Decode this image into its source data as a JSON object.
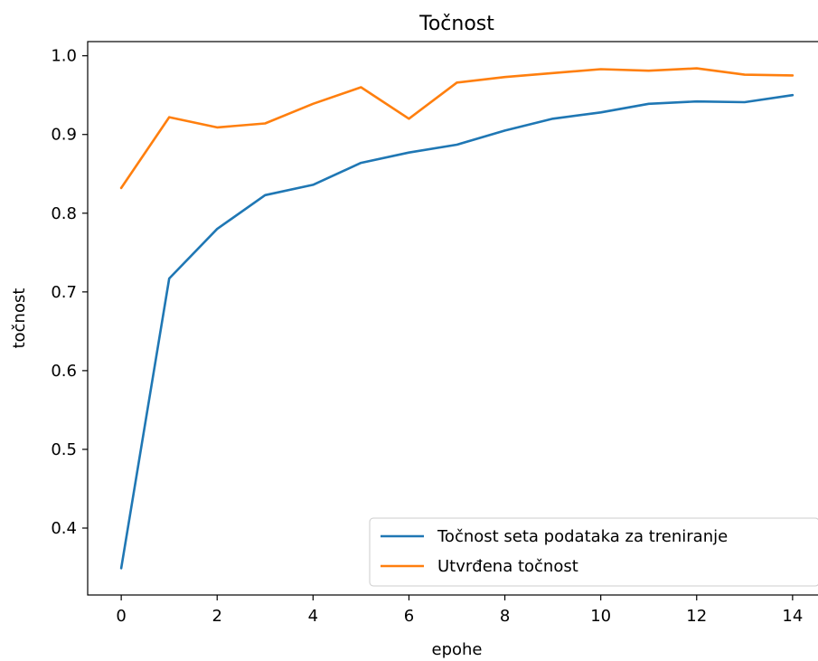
{
  "chart_data": {
    "type": "line",
    "title": "Točnost",
    "xlabel": "epohe",
    "ylabel": "točnost",
    "x": [
      0,
      1,
      2,
      3,
      4,
      5,
      6,
      7,
      8,
      9,
      10,
      11,
      12,
      13,
      14
    ],
    "xlim": [
      -0.7,
      14.7
    ],
    "ylim": [
      0.315,
      1.018
    ],
    "xticks": [
      0,
      2,
      4,
      6,
      8,
      10,
      12,
      14
    ],
    "yticks": [
      0.4,
      0.5,
      0.6,
      0.7,
      0.8,
      0.9,
      1.0
    ],
    "xtick_labels": [
      "0",
      "2",
      "4",
      "6",
      "8",
      "10",
      "12",
      "14"
    ],
    "ytick_labels": [
      "0.4",
      "0.5",
      "0.6",
      "0.7",
      "0.8",
      "0.9",
      "1.0"
    ],
    "grid": false,
    "legend_position": "lower-right",
    "series": [
      {
        "name": "Točnost seta podataka za treniranje",
        "color": "#1f77b4",
        "values": [
          0.349,
          0.717,
          0.78,
          0.823,
          0.836,
          0.864,
          0.877,
          0.887,
          0.905,
          0.92,
          0.928,
          0.939,
          0.942,
          0.941,
          0.95
        ]
      },
      {
        "name": "Utvrđena točnost",
        "color": "#ff7f0e",
        "values": [
          0.832,
          0.922,
          0.909,
          0.914,
          0.939,
          0.96,
          0.92,
          0.966,
          0.973,
          0.978,
          0.983,
          0.981,
          0.984,
          0.976,
          0.975
        ]
      }
    ]
  }
}
